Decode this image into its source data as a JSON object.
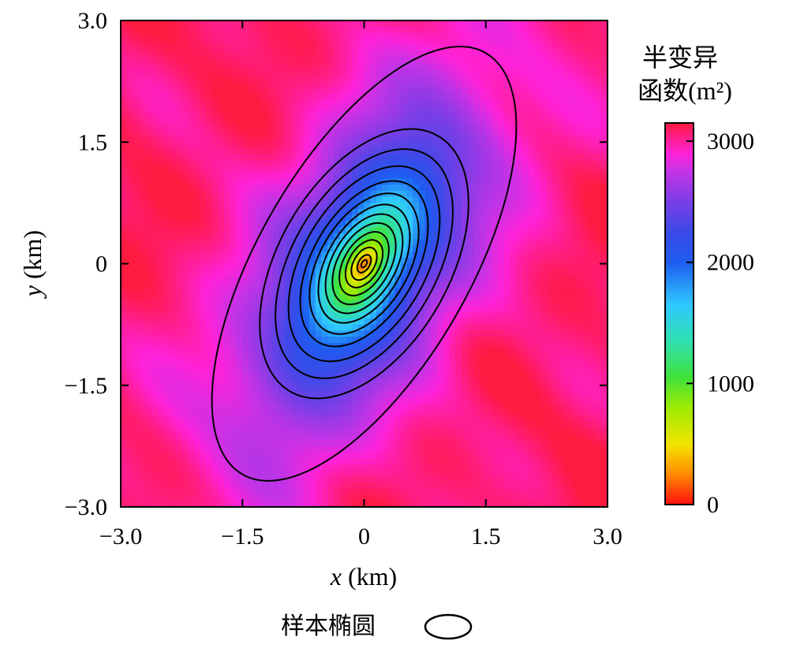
{
  "chart_data": {
    "type": "heatmap",
    "title": "",
    "xlabel": {
      "var": "x",
      "unit": " (km)"
    },
    "ylabel": {
      "var": "y",
      "unit": " (km)"
    },
    "xlim": [
      -3.0,
      3.0
    ],
    "ylim": [
      -3.0,
      3.0
    ],
    "x_ticks": [
      {
        "value": -3.0,
        "label": "−3.0"
      },
      {
        "value": -1.5,
        "label": "−1.5"
      },
      {
        "value": 0,
        "label": "0"
      },
      {
        "value": 1.5,
        "label": "1.5"
      },
      {
        "value": 3.0,
        "label": "3.0"
      }
    ],
    "y_ticks": [
      {
        "value": 3.0,
        "label": "3.0"
      },
      {
        "value": 1.5,
        "label": "1.5"
      },
      {
        "value": 0,
        "label": "0"
      },
      {
        "value": -1.5,
        "label": "−1.5"
      },
      {
        "value": -3.0,
        "label": "−3.0"
      }
    ],
    "colorbar": {
      "title_lines": [
        "半变异",
        "函数(m²)"
      ],
      "range": [
        0,
        3150
      ],
      "ticks": [
        {
          "value": 0,
          "label": "0"
        },
        {
          "value": 1000,
          "label": "1000"
        },
        {
          "value": 2000,
          "label": "2000"
        },
        {
          "value": 3000,
          "label": "3000"
        }
      ],
      "colors": [
        {
          "value": 0,
          "color": "#ff1010"
        },
        {
          "value": 250,
          "color": "#ff8a00"
        },
        {
          "value": 500,
          "color": "#f2e400"
        },
        {
          "value": 800,
          "color": "#9eea00"
        },
        {
          "value": 1050,
          "color": "#3fe23a"
        },
        {
          "value": 1350,
          "color": "#2fe0b0"
        },
        {
          "value": 1650,
          "color": "#2fc8ff"
        },
        {
          "value": 2000,
          "color": "#1e5cf0"
        },
        {
          "value": 2250,
          "color": "#3b4ae8"
        },
        {
          "value": 2500,
          "color": "#7a3ee6"
        },
        {
          "value": 2750,
          "color": "#c433e6"
        },
        {
          "value": 2900,
          "color": "#ff22d8"
        },
        {
          "value": 3150,
          "color": "#ff1a40"
        }
      ]
    },
    "field_model": {
      "sill": 3100,
      "center": [
        0,
        0
      ],
      "major_axis_angle_deg": 60,
      "range_major_km": 1.9,
      "range_minor_km": 0.85
    },
    "contours": {
      "center": [
        0,
        0
      ],
      "angle_deg": 60,
      "rings": [
        {
          "a": 0.05,
          "b": 0.03
        },
        {
          "a": 0.12,
          "b": 0.07
        },
        {
          "a": 0.22,
          "b": 0.13
        },
        {
          "a": 0.32,
          "b": 0.19
        },
        {
          "a": 0.43,
          "b": 0.25
        },
        {
          "a": 0.55,
          "b": 0.32
        },
        {
          "a": 0.67,
          "b": 0.39
        },
        {
          "a": 0.8,
          "b": 0.46
        },
        {
          "a": 0.95,
          "b": 0.55
        },
        {
          "a": 1.12,
          "b": 0.64
        },
        {
          "a": 1.32,
          "b": 0.76
        },
        {
          "a": 1.55,
          "b": 0.89
        },
        {
          "a": 1.82,
          "b": 1.05
        },
        {
          "a": 3.0,
          "b": 1.3
        }
      ]
    },
    "legend": {
      "label": "样本椭圆",
      "icon": "ellipse-outline-icon"
    }
  }
}
